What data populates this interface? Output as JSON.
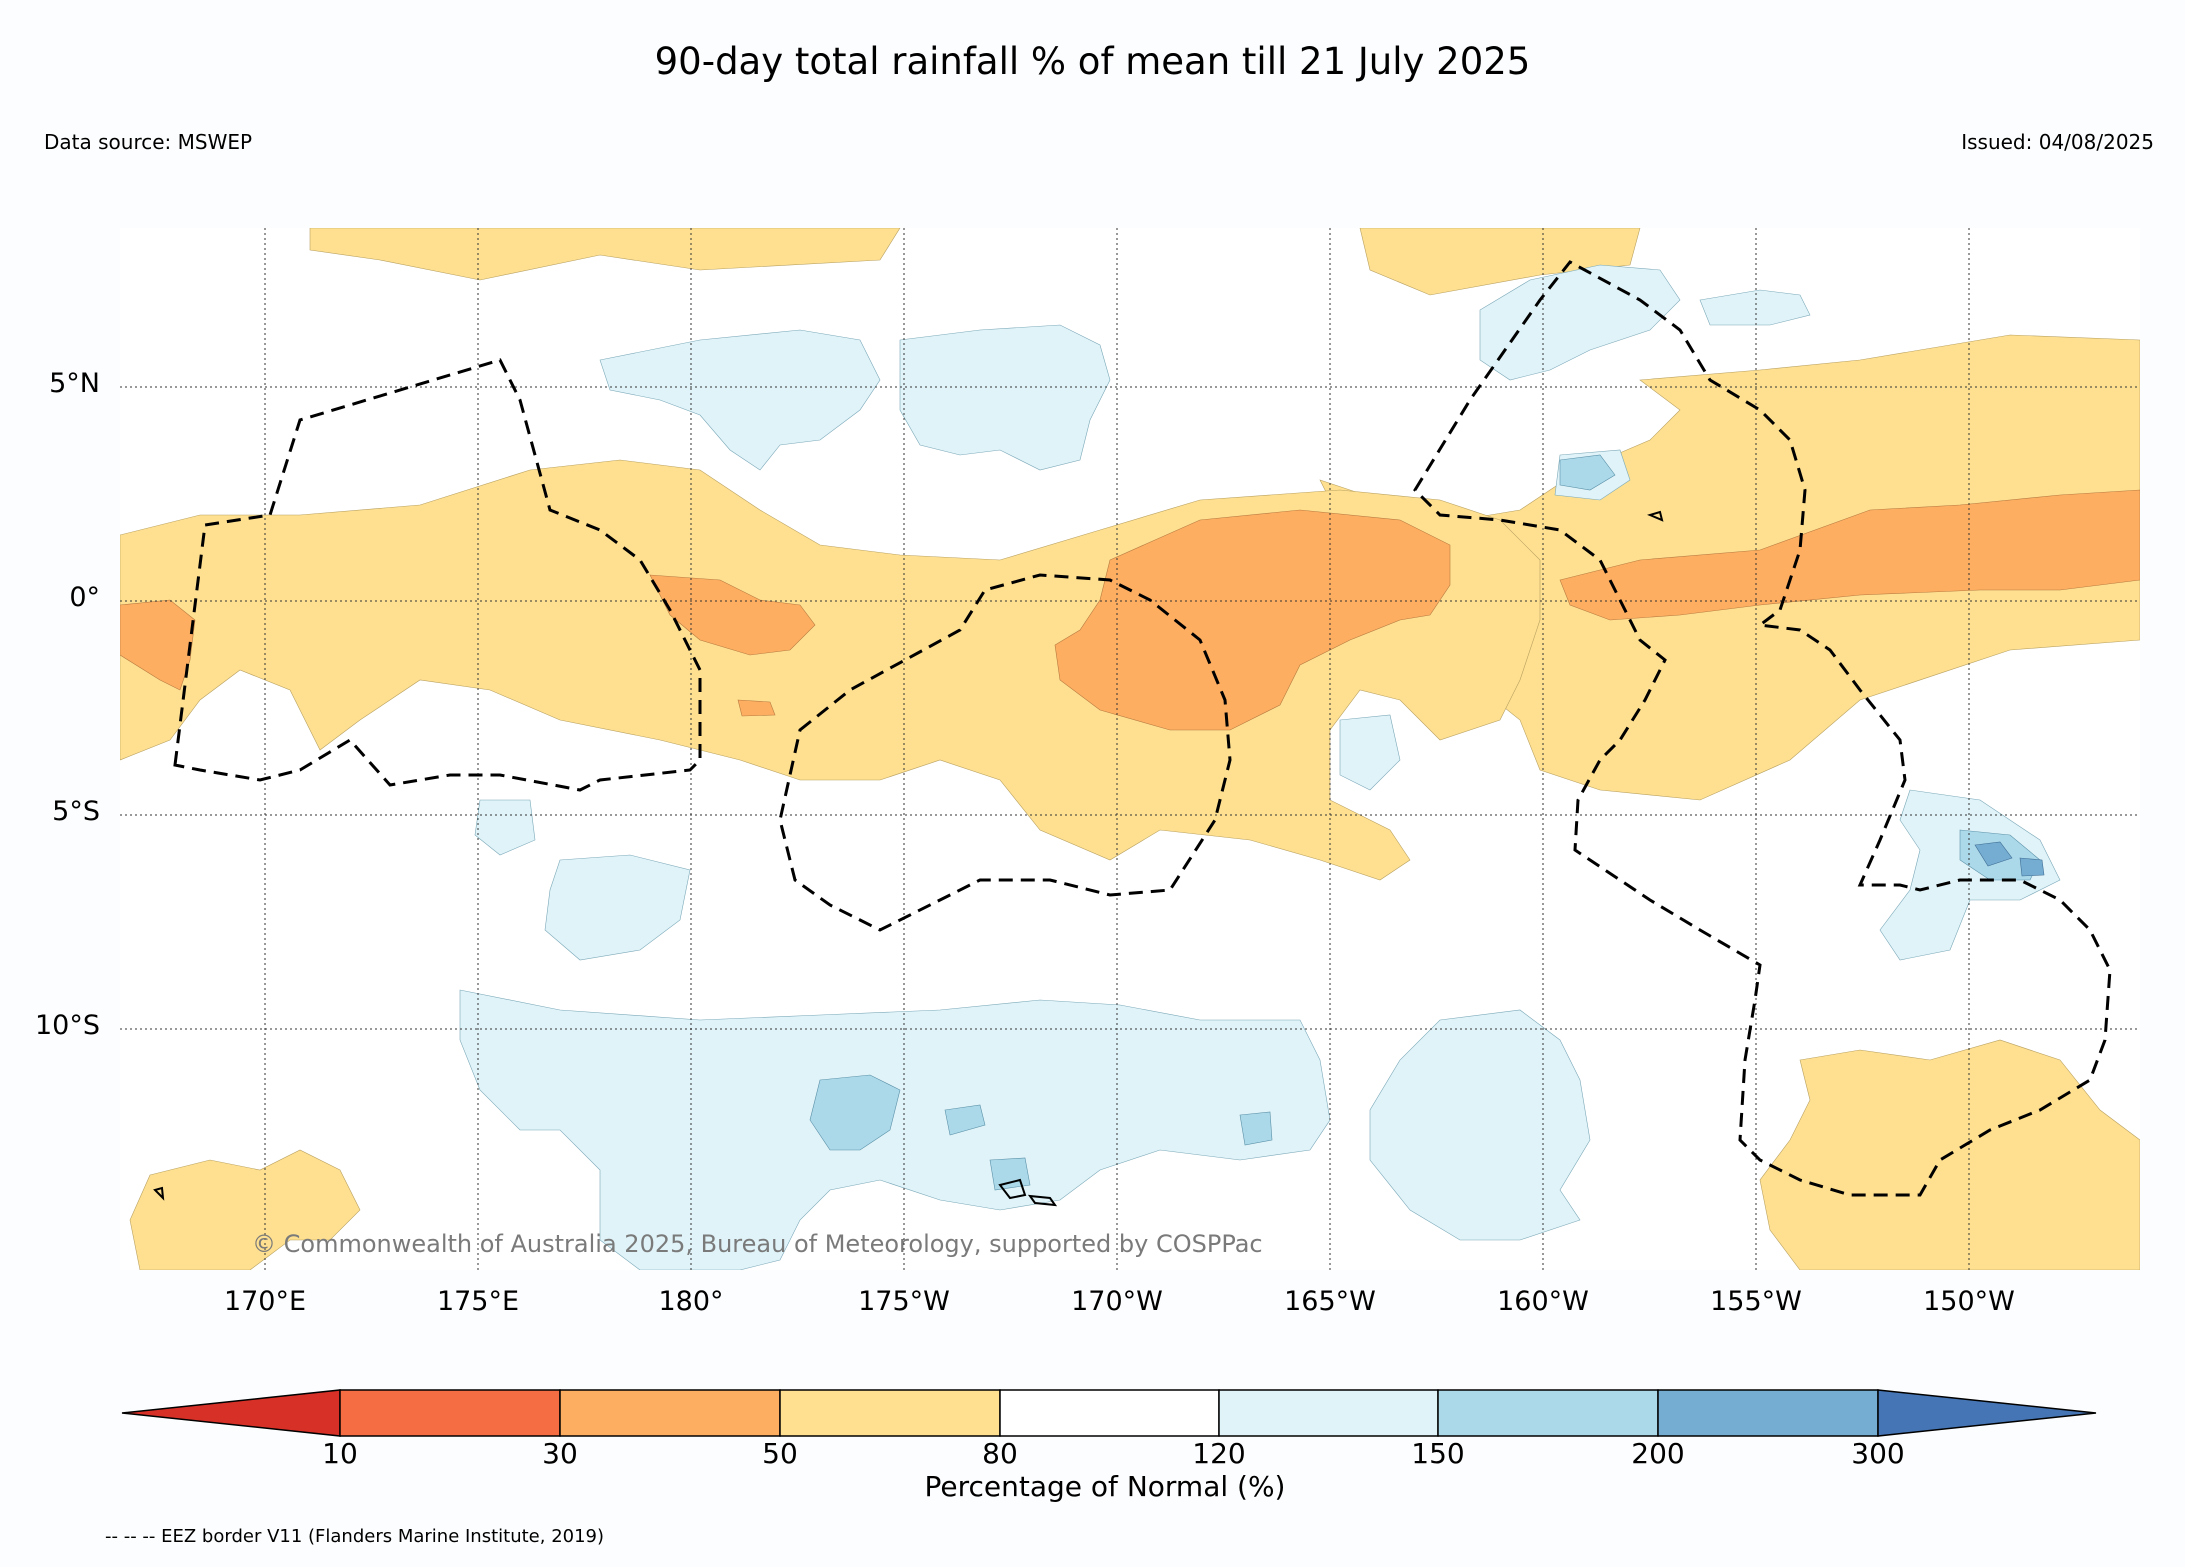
{
  "header": {
    "title": "90-day total rainfall % of mean till 21 July 2025",
    "data_source": "Data source: MSWEP",
    "issued": "Issued: 04/08/2025"
  },
  "map": {
    "lat_labels": [
      "5°N",
      "0°",
      "5°S",
      "10°S"
    ],
    "lon_labels": [
      "170°E",
      "175°E",
      "180°",
      "175°W",
      "170°W",
      "165°W",
      "160°W",
      "155°W",
      "150°W"
    ],
    "copyright": "© Commonwealth of Australia 2025, Bureau of Meteorology, supported by COSPPac",
    "colors": {
      "below_10": "#d73027",
      "10_30": "#f46d43",
      "30_50": "#fdae61",
      "50_80": "#fee090",
      "80_120": "#ffffff",
      "120_150": "#e0f3f8",
      "150_200": "#abd9e9",
      "200_300": "#74add1",
      "above_300": "#4575b4"
    }
  },
  "colorbar": {
    "title": "Percentage of Normal (%)",
    "ticks": [
      "10",
      "30",
      "50",
      "80",
      "120",
      "150",
      "200",
      "300"
    ]
  },
  "footer": {
    "eez_note": "-- -- -- EEZ border V11 (Flanders Marine Institute, 2019)"
  }
}
